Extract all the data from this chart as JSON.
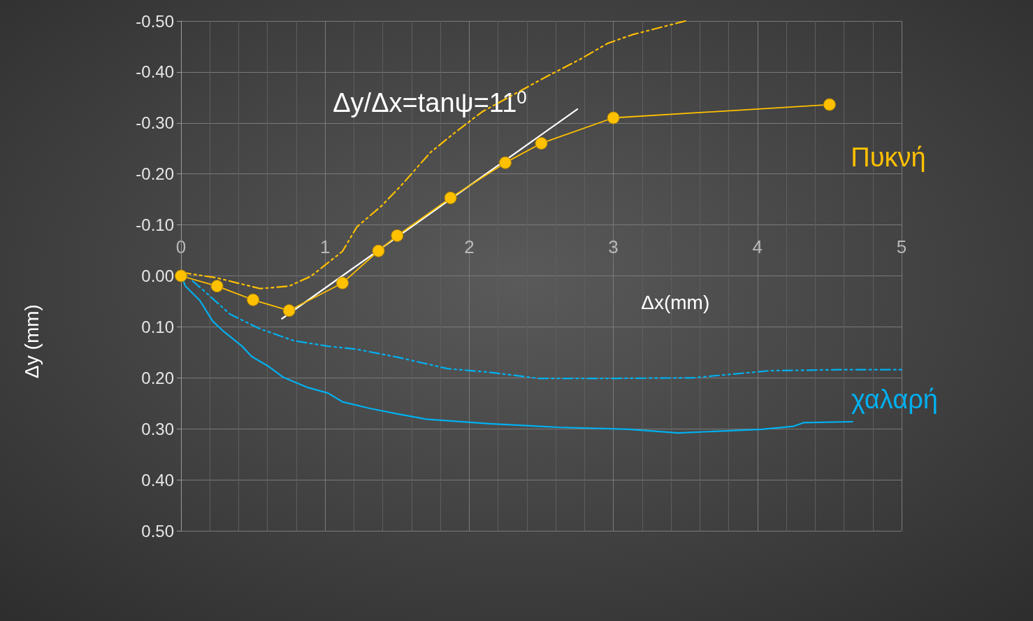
{
  "chart_data": {
    "type": "line",
    "xlabel": "Δx(mm)",
    "ylabel": "Δy (mm)",
    "xlim": [
      0,
      5
    ],
    "xticks": [
      0,
      1,
      2,
      3,
      4,
      5
    ],
    "ylim": [
      0.5,
      -0.5
    ],
    "yticks": [
      {
        "value": -0.5,
        "label": "-0.50"
      },
      {
        "value": -0.4,
        "label": "-0.40"
      },
      {
        "value": -0.3,
        "label": "-0.30"
      },
      {
        "value": -0.2,
        "label": "-0.20"
      },
      {
        "value": -0.1,
        "label": "-0.10"
      },
      {
        "value": 0,
        "label": "0.00"
      },
      {
        "value": 0.1,
        "label": "0.10"
      },
      {
        "value": 0.2,
        "label": "0.20"
      },
      {
        "value": 0.3,
        "label": "0.30"
      },
      {
        "value": 0.4,
        "label": "0.40"
      },
      {
        "value": 0.5,
        "label": "0.50"
      }
    ],
    "grid": true,
    "legend": false,
    "marker": "none",
    "line_style": "solid",
    "series": [
      {
        "name": "Πυκνή",
        "color": "#ffc000",
        "marker": "circle",
        "x": [
          0,
          0.25,
          0.5,
          0.75,
          1.12,
          1.37,
          1.5,
          1.87,
          2.25,
          2.5,
          3.0,
          4.5
        ],
        "values": [
          0,
          0.02,
          0.047,
          0.068,
          0.014,
          -0.049,
          -0.079,
          -0.153,
          -0.222,
          -0.26,
          -0.31,
          -0.336
        ]
      },
      {
        "color": "#ffc000",
        "line_style": "dashed",
        "x": [
          0,
          0.25,
          0.55,
          0.75,
          0.9,
          1.12,
          1.22,
          1.39,
          1.53,
          1.73,
          1.9,
          2.09,
          2.31,
          2.53,
          2.77,
          2.96,
          3.13,
          3.35,
          3.5
        ],
        "values": [
          -0.007,
          0.004,
          0.025,
          0.02,
          0.001,
          -0.048,
          -0.096,
          -0.137,
          -0.178,
          -0.242,
          -0.281,
          -0.322,
          -0.356,
          -0.39,
          -0.425,
          -0.456,
          -0.473,
          -0.489,
          -0.5
        ]
      },
      {
        "color": "#ffffff",
        "x": [
          0.7,
          2.75
        ],
        "values": [
          0.084,
          -0.327
        ]
      },
      {
        "name": "χαλαρή",
        "color": "#00b0f0",
        "x": [
          0,
          0.03,
          0.13,
          0.22,
          0.3,
          0.42,
          0.49,
          0.61,
          0.71,
          0.88,
          1.02,
          1.12,
          1.31,
          1.51,
          1.7,
          2.14,
          2.62,
          3.11,
          3.45,
          4.03,
          4.25,
          4.32,
          4.66
        ],
        "values": [
          -0.003,
          0.02,
          0.048,
          0.089,
          0.11,
          0.137,
          0.158,
          0.178,
          0.199,
          0.219,
          0.23,
          0.247,
          0.26,
          0.271,
          0.281,
          0.29,
          0.297,
          0.301,
          0.308,
          0.301,
          0.295,
          0.288,
          0.286
        ]
      },
      {
        "color": "#00b0f0",
        "line_style": "dashed",
        "x": [
          0.08,
          0.15,
          0.34,
          0.54,
          0.78,
          1.02,
          1.22,
          1.51,
          1.85,
          2.14,
          2.48,
          3.01,
          3.55,
          4.08,
          4.56,
          5.0
        ],
        "values": [
          0.01,
          0.027,
          0.075,
          0.103,
          0.127,
          0.138,
          0.144,
          0.16,
          0.182,
          0.189,
          0.201,
          0.201,
          0.2,
          0.186,
          0.184,
          0.184
        ]
      }
    ],
    "annotations": [
      "Δy/Δx=tanψ=11$^{0}$"
    ]
  }
}
